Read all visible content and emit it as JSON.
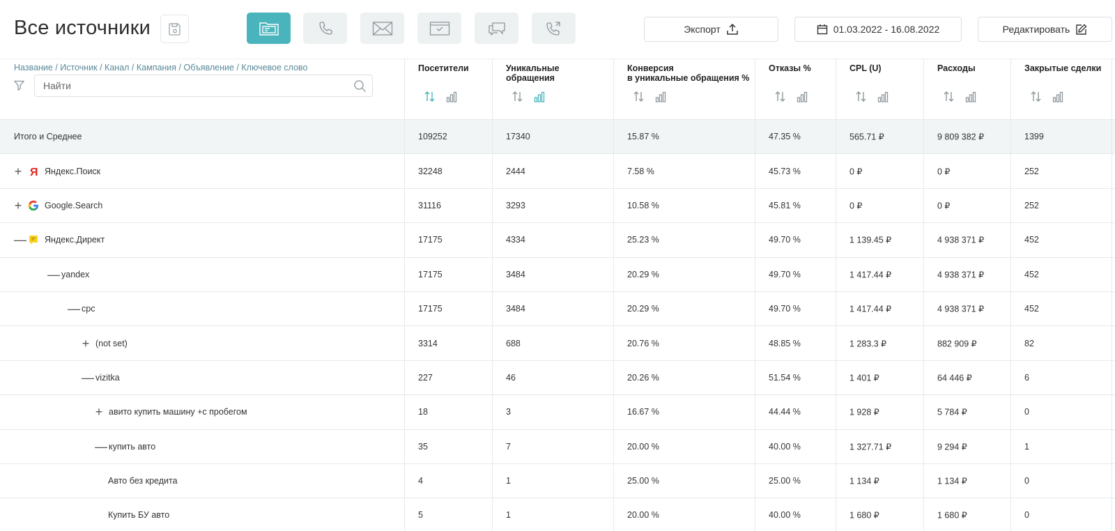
{
  "header": {
    "title": "Все источники",
    "export_label": "Экспорт",
    "date_range": "01.03.2022 - 16.08.2022",
    "edit_label": "Редактировать"
  },
  "source_types": [
    {
      "name": "all-sources",
      "active": true
    },
    {
      "name": "calls",
      "active": false
    },
    {
      "name": "email",
      "active": false
    },
    {
      "name": "forms",
      "active": false
    },
    {
      "name": "chats",
      "active": false
    },
    {
      "name": "callback",
      "active": false
    }
  ],
  "table": {
    "breadcrumb": "Название / Источник / Канал / Кампания / Объявление / Ключевое слово",
    "search_placeholder": "Найти",
    "columns": [
      {
        "label": "Посетители",
        "sort_active": true,
        "chart_active": false
      },
      {
        "label": "Уникальные\nобращения",
        "sort_active": false,
        "chart_active": true
      },
      {
        "label": "Конверсия\nв уникальные обращения %",
        "sort_active": false,
        "chart_active": false
      },
      {
        "label": "Отказы %",
        "sort_active": false,
        "chart_active": false
      },
      {
        "label": "CPL (U)",
        "sort_active": false,
        "chart_active": false
      },
      {
        "label": "Расходы",
        "sort_active": false,
        "chart_active": false
      },
      {
        "label": "Закрытые сделки",
        "sort_active": false,
        "chart_active": false
      }
    ],
    "rows": [
      {
        "name": "Итого и Среднее",
        "level": 0,
        "toggle": "",
        "icon": "",
        "total": true,
        "values": [
          "109252",
          "17340",
          "15.87 %",
          "47.35 %",
          "565.71 ₽",
          "9 809 382 ₽",
          "1399"
        ]
      },
      {
        "name": "Яндекс.Поиск",
        "level": 0,
        "toggle": "+",
        "icon": "yandex-icon",
        "values": [
          "32248",
          "2444",
          "7.58 %",
          "45.73 %",
          "0 ₽",
          "0 ₽",
          "252"
        ]
      },
      {
        "name": "Google.Search",
        "level": 0,
        "toggle": "+",
        "icon": "google-icon",
        "values": [
          "31116",
          "3293",
          "10.58 %",
          "45.81 %",
          "0 ₽",
          "0 ₽",
          "252"
        ]
      },
      {
        "name": "Яндекс.Директ",
        "level": 0,
        "toggle": "—",
        "icon": "yandex-direct-icon",
        "values": [
          "17175",
          "4334",
          "25.23 %",
          "49.70 %",
          "1 139.45 ₽",
          "4 938 371 ₽",
          "452"
        ]
      },
      {
        "name": "yandex",
        "level": 1,
        "toggle": "—",
        "icon": "",
        "values": [
          "17175",
          "3484",
          "20.29 %",
          "49.70 %",
          "1 417.44 ₽",
          "4 938 371 ₽",
          "452"
        ]
      },
      {
        "name": "cpc",
        "level": 2,
        "toggle": "—",
        "icon": "",
        "values": [
          "17175",
          "3484",
          "20.29 %",
          "49.70 %",
          "1 417.44 ₽",
          "4 938 371 ₽",
          "452"
        ]
      },
      {
        "name": "(not set)",
        "level": 3,
        "toggle": "+",
        "icon": "",
        "values": [
          "3314",
          "688",
          "20.76 %",
          "48.85 %",
          "1 283.3 ₽",
          "882 909 ₽",
          "82"
        ]
      },
      {
        "name": "vizitka",
        "level": 3,
        "toggle": "—",
        "icon": "",
        "values": [
          "227",
          "46",
          "20.26 %",
          "51.54 %",
          "1 401 ₽",
          "64 446 ₽",
          "6"
        ]
      },
      {
        "name": "авито купить машину +с пробегом",
        "level": 4,
        "toggle": "+",
        "icon": "",
        "values": [
          "18",
          "3",
          "16.67 %",
          "44.44 %",
          "1 928 ₽",
          "5 784 ₽",
          "0"
        ]
      },
      {
        "name": "купить авто",
        "level": 4,
        "toggle": "—",
        "icon": "",
        "values": [
          "35",
          "7",
          "20.00 %",
          "40.00 %",
          "1 327.71 ₽",
          "9 294 ₽",
          "1"
        ]
      },
      {
        "name": "Авто без кредита",
        "level": 5,
        "toggle": "",
        "icon": "",
        "values": [
          "4",
          "1",
          "25.00 %",
          "25.00 %",
          "1 134 ₽",
          "1 134 ₽",
          "0"
        ]
      },
      {
        "name": "Купить БУ авто",
        "level": 5,
        "toggle": "",
        "icon": "",
        "values": [
          "5",
          "1",
          "20.00 %",
          "40.00 %",
          "1 680 ₽",
          "1 680 ₽",
          "0"
        ]
      }
    ]
  },
  "colors": {
    "accent": "#4ab4bd",
    "header_bg": "#f2f5f6",
    "breadcrumb": "#5a8a99"
  }
}
